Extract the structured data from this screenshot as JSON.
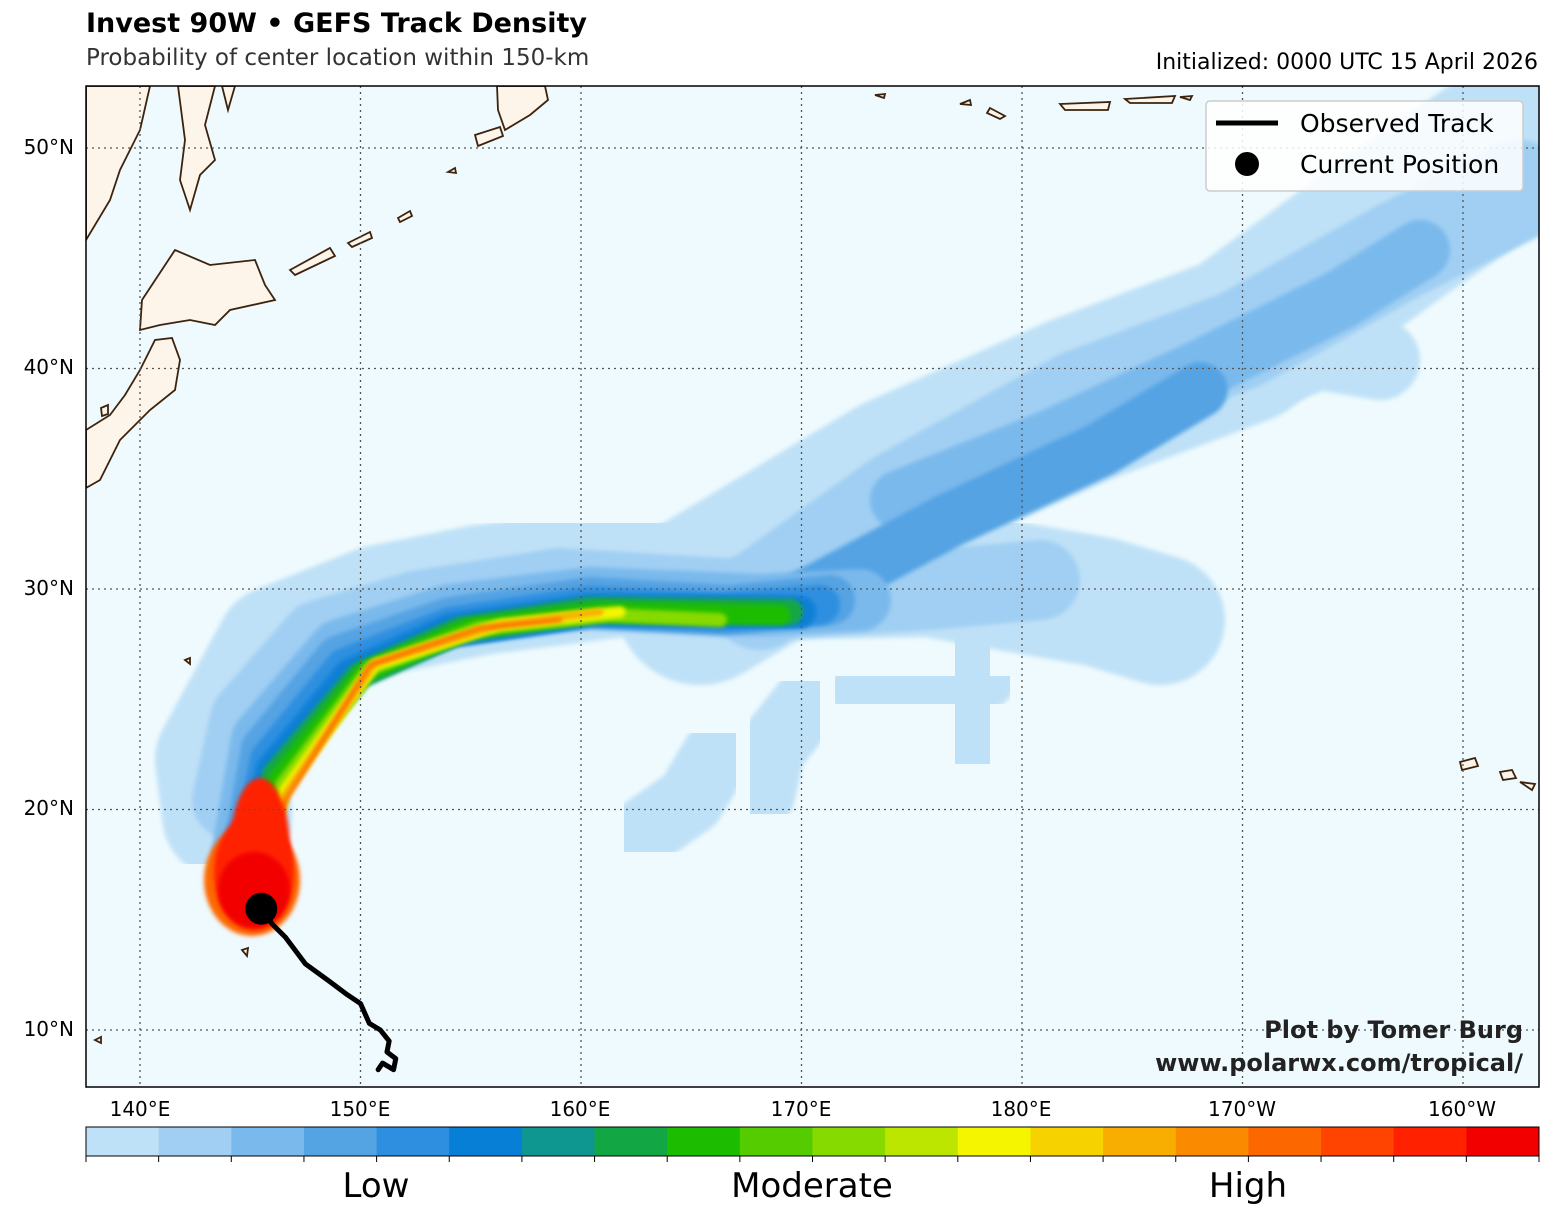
{
  "header": {
    "title": "Invest 90W • GEFS Track Density",
    "subtitle": "Probability of center location within 150-km",
    "initialized": "Initialized: 0000 UTC 15 April 2026"
  },
  "map": {
    "ocean_color": "#eefafd",
    "land_color": "#fdf5ea",
    "coast_color": "#3d230d",
    "lat_labels": [
      "50°N",
      "40°N",
      "30°N",
      "20°N",
      "10°N"
    ],
    "lon_labels": [
      "140°E",
      "150°E",
      "160°E",
      "170°E",
      "180°E",
      "170°W",
      "160°W"
    ]
  },
  "legend": {
    "observed_track": "Observed Track",
    "current_position": "Current Position"
  },
  "credits": {
    "line1": "Plot by Tomer Burg",
    "line2": "www.polarwx.com/tropical/"
  },
  "colorbar": {
    "colors": [
      "#bfe1f7",
      "#a0cff3",
      "#7ab9ec",
      "#54a3e3",
      "#2e8fe0",
      "#077fd6",
      "#0e9690",
      "#12a744",
      "#1cbd00",
      "#54cc00",
      "#87da00",
      "#bce600",
      "#f5f500",
      "#f6d200",
      "#f7ae00",
      "#fa8a00",
      "#fd6700",
      "#fe4400",
      "#ff2100",
      "#f20000"
    ],
    "labels": [
      "Low",
      "Moderate",
      "High"
    ]
  },
  "storm": {
    "current_position": {
      "lat": 15.5,
      "lon": 145.5
    },
    "observed_track": [
      {
        "lat": 8.2,
        "lon": 150.8
      },
      {
        "lat": 8.5,
        "lon": 151.0
      },
      {
        "lat": 8.2,
        "lon": 151.5
      },
      {
        "lat": 8.7,
        "lon": 151.6
      },
      {
        "lat": 9.0,
        "lon": 151.2
      },
      {
        "lat": 9.5,
        "lon": 151.3
      },
      {
        "lat": 10.0,
        "lon": 150.9
      },
      {
        "lat": 10.3,
        "lon": 150.4
      },
      {
        "lat": 11.2,
        "lon": 150.0
      },
      {
        "lat": 11.6,
        "lon": 149.4
      },
      {
        "lat": 12.2,
        "lon": 148.6
      },
      {
        "lat": 13.0,
        "lon": 147.5
      },
      {
        "lat": 14.2,
        "lon": 146.6
      },
      {
        "lat": 14.8,
        "lon": 146.0
      },
      {
        "lat": 15.5,
        "lon": 145.5
      }
    ]
  }
}
